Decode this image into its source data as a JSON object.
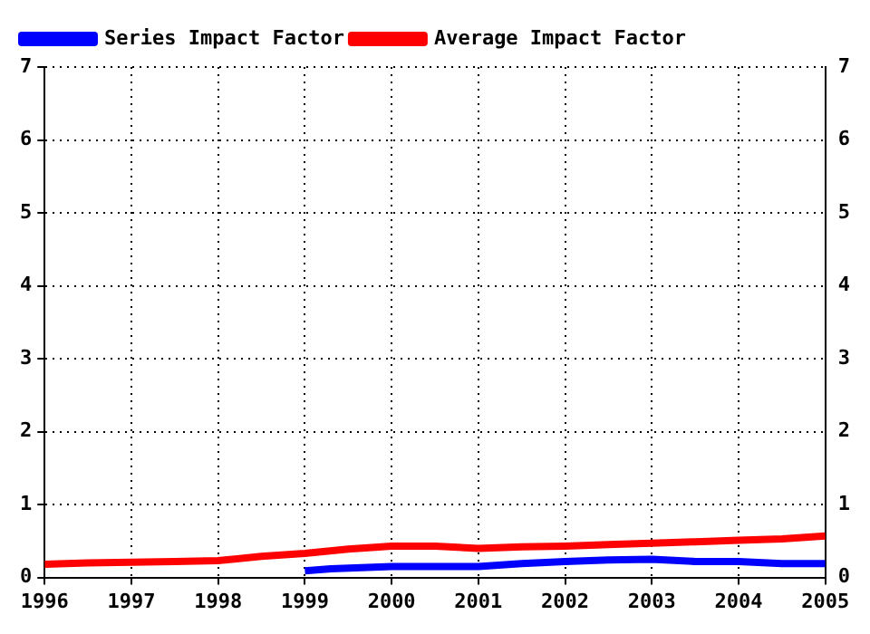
{
  "chart_data": {
    "type": "line",
    "x": [
      1996,
      1996.5,
      1997,
      1997.5,
      1998,
      1998.5,
      1999,
      1999.5,
      2000,
      2000.5,
      2001,
      2001.5,
      2002,
      2002.5,
      2003,
      2003.5,
      2004,
      2004.5,
      2005
    ],
    "series": [
      {
        "name": "Series Impact Factor",
        "color": "#0000ff",
        "x": [
          1999,
          1999.3,
          2000,
          2000.5,
          2001,
          2001.5,
          2002,
          2002.5,
          2003,
          2003.5,
          2004,
          2004.5,
          2005
        ],
        "values": [
          0.09,
          0.12,
          0.15,
          0.15,
          0.15,
          0.19,
          0.22,
          0.24,
          0.25,
          0.22,
          0.22,
          0.19,
          0.19
        ]
      },
      {
        "name": "Average Impact Factor",
        "color": "#ff0000",
        "values": [
          0.18,
          0.2,
          0.21,
          0.22,
          0.23,
          0.29,
          0.33,
          0.39,
          0.43,
          0.43,
          0.4,
          0.42,
          0.43,
          0.45,
          0.47,
          0.49,
          0.51,
          0.53,
          0.57
        ]
      }
    ],
    "xlim": [
      1996,
      2005
    ],
    "xticks": [
      1996,
      1997,
      1998,
      1999,
      2000,
      2001,
      2002,
      2003,
      2004,
      2005
    ],
    "ylim": [
      0,
      7
    ],
    "yticks": [
      0,
      1,
      2,
      3,
      4,
      5,
      6,
      7
    ],
    "y2lim": [
      0,
      7
    ],
    "y2ticks": [
      0,
      1,
      2,
      3,
      4,
      5,
      6,
      7
    ],
    "grid": true,
    "legend": "top left",
    "marker": "none",
    "line_style": "solid"
  }
}
